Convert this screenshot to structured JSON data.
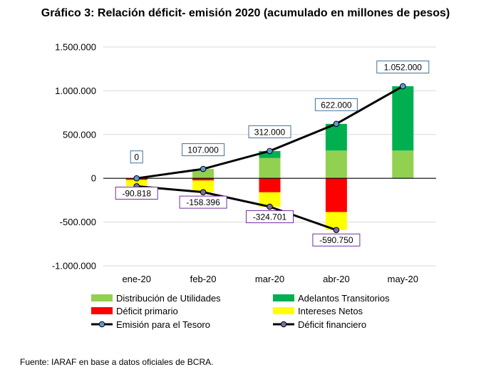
{
  "title": "Gráfico 3: Relación déficit- emisión 2020 (acumulado en millones de pesos)",
  "source": "Fuente: IARAF en base a datos oficiales de BCRA.",
  "colors": {
    "distribucion": "#92D050",
    "adelantos": "#00B050",
    "deficit_primario": "#FF0000",
    "intereses": "#FFFF00",
    "line": "#000000",
    "marker_emision": "#5B9BD5",
    "marker_deficit": "#7F6A9F",
    "label_border_emision": "#41719C",
    "label_border_deficit": "#7030A0"
  },
  "chart_data": {
    "type": "bar",
    "stacked": true,
    "categories": [
      "ene-20",
      "feb-20",
      "mar-20",
      "abr-20",
      "may-20"
    ],
    "ylim": [
      -1000000,
      1500000
    ],
    "yticks": [
      -1000000,
      -500000,
      0,
      500000,
      1000000,
      1500000
    ],
    "ytick_labels": [
      "-1.000.000",
      "-500.000",
      "0",
      "500.000",
      "1.000.000",
      "1.500.000"
    ],
    "grid": true,
    "legend_position": "bottom",
    "bar_series": [
      {
        "name": "Distribución de Utilidades",
        "color_key": "distribucion",
        "values": [
          0,
          107000,
          232000,
          317000,
          317000
        ]
      },
      {
        "name": "Adelantos Transitorios",
        "color_key": "adelantos",
        "values": [
          0,
          0,
          80000,
          305000,
          735000
        ]
      },
      {
        "name": "Déficit primario",
        "color_key": "deficit_primario",
        "values": [
          -18000,
          -25000,
          -160000,
          -385000,
          0
        ]
      },
      {
        "name": "Intereses Netos",
        "color_key": "intereses",
        "values": [
          -72818,
          -133396,
          -164701,
          -205750,
          0
        ]
      }
    ],
    "line_series": [
      {
        "name": "Emisión para el Tesoro",
        "marker_key": "marker_emision",
        "border_key": "label_border_emision",
        "values": [
          0,
          107000,
          312000,
          622000,
          1052000
        ],
        "labels": [
          "0",
          "107.000",
          "312.000",
          "622.000",
          "1.052.000"
        ]
      },
      {
        "name": "Déficit financiero",
        "marker_key": "marker_deficit",
        "border_key": "label_border_deficit",
        "values": [
          -90818,
          -158396,
          -324701,
          -590750
        ],
        "labels": [
          "-90.818",
          "-158.396",
          "-324.701",
          "-590.750"
        ]
      }
    ]
  }
}
